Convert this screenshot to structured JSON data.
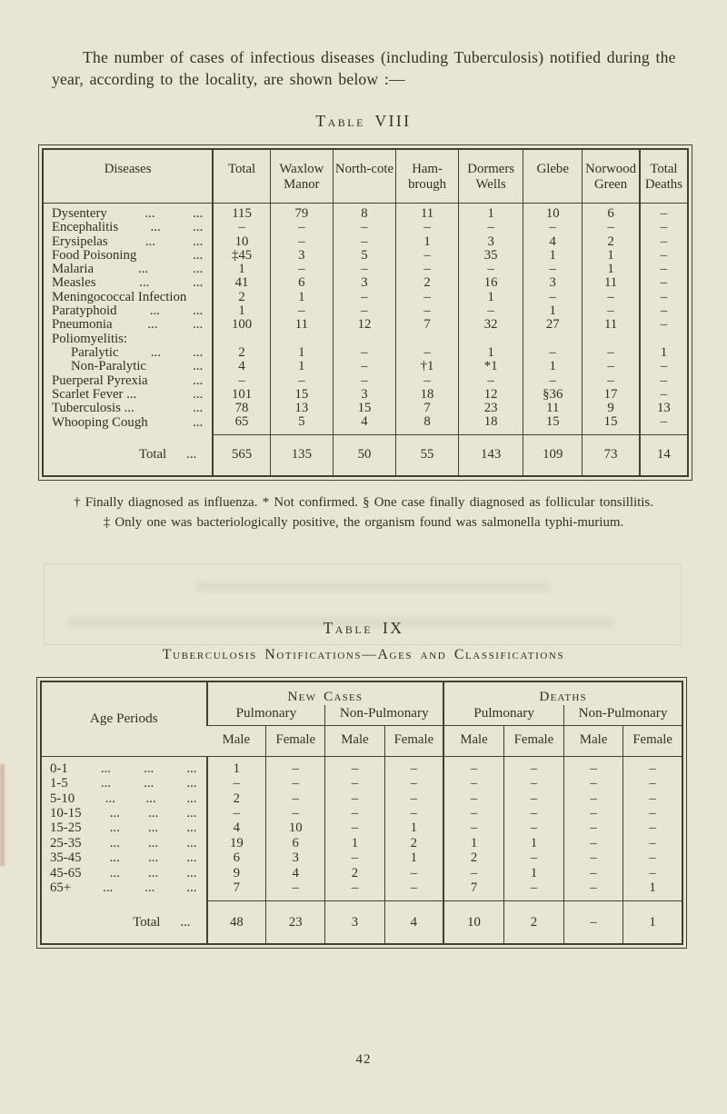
{
  "theme": {
    "paper": "#e9e5d5",
    "ink": "#322e24"
  },
  "page": {
    "intro": "The number of cases of infectious diseases (including Tuberculosis) notified during the year, according to the locality, are shown below :—",
    "page_number": "42"
  },
  "table8": {
    "title": "Table VIII",
    "columns": [
      "Diseases",
      "Total",
      "Waxlow Manor",
      "North-cote",
      "Ham-brough",
      "Dormers Wells",
      "Glebe",
      "Norwood Green",
      "Total Deaths"
    ],
    "rows": [
      {
        "label": "Dysentery",
        "leader": "... ...",
        "values": [
          "115",
          "79",
          "8",
          "11",
          "1",
          "10",
          "6",
          "–"
        ]
      },
      {
        "label": "Encephalitis",
        "leader": "... ...",
        "values": [
          "–",
          "–",
          "–",
          "–",
          "–",
          "–",
          "–",
          "–"
        ]
      },
      {
        "label": "Erysipelas",
        "leader": "... ...",
        "values": [
          "10",
          "–",
          "–",
          "1",
          "3",
          "4",
          "2",
          "–"
        ]
      },
      {
        "label": "Food Poisoning",
        "leader": "...",
        "values": [
          "‡45",
          "3",
          "5",
          "–",
          "35",
          "1",
          "1",
          "–"
        ]
      },
      {
        "label": "Malaria",
        "leader": "... ...",
        "values": [
          "1",
          "–",
          "–",
          "–",
          "–",
          "–",
          "1",
          "–"
        ]
      },
      {
        "label": "Measles",
        "leader": "... ...",
        "values": [
          "41",
          "6",
          "3",
          "2",
          "16",
          "3",
          "11",
          "–"
        ]
      },
      {
        "label": "Meningococcal Infection",
        "leader": "",
        "values": [
          "2",
          "1",
          "–",
          "–",
          "1",
          "–",
          "–",
          "–"
        ]
      },
      {
        "label": "Paratyphoid",
        "leader": "... ...",
        "values": [
          "1",
          "–",
          "–",
          "–",
          "–",
          "1",
          "–",
          "–"
        ]
      },
      {
        "label": "Pneumonia",
        "leader": "... ...",
        "values": [
          "100",
          "11",
          "12",
          "7",
          "32",
          "27",
          "11",
          "–"
        ]
      },
      {
        "label": "Poliomyelitis:",
        "leader": "",
        "values": [
          "",
          "",
          "",
          "",
          "",
          "",
          "",
          ""
        ]
      },
      {
        "label": "Paralytic",
        "leader": "... ...",
        "indent": true,
        "values": [
          "2",
          "1",
          "–",
          "–",
          "1",
          "–",
          "–",
          "1"
        ]
      },
      {
        "label": "Non-Paralytic",
        "leader": "...",
        "indent": true,
        "values": [
          "4",
          "1",
          "–",
          "†1",
          "*1",
          "1",
          "–",
          "–"
        ]
      },
      {
        "label": "Puerperal Pyrexia",
        "leader": "...",
        "values": [
          "–",
          "–",
          "–",
          "–",
          "–",
          "–",
          "–",
          "–"
        ]
      },
      {
        "label": "Scarlet Fever ...",
        "leader": "...",
        "values": [
          "101",
          "15",
          "3",
          "18",
          "12",
          "§36",
          "17",
          "–"
        ]
      },
      {
        "label": "Tuberculosis ...",
        "leader": "...",
        "values": [
          "78",
          "13",
          "15",
          "7",
          "23",
          "11",
          "9",
          "13"
        ]
      },
      {
        "label": "Whooping Cough",
        "leader": "...",
        "values": [
          "65",
          "5",
          "4",
          "8",
          "18",
          "15",
          "15",
          "–"
        ]
      }
    ],
    "total_row": {
      "label": "Total",
      "leader": "...",
      "values": [
        "565",
        "135",
        "50",
        "55",
        "143",
        "109",
        "73",
        "14"
      ]
    },
    "footnotes": [
      "† Finally diagnosed as influenza.  * Not confirmed.  § One case finally diagnosed as follicular tonsillitis.",
      "‡ Only one was bacteriologically positive, the organism found was salmonella typhi-murium."
    ]
  },
  "table9": {
    "title": "Table IX",
    "subtitle": "Tuberculosis Notifications—Ages and Classifications",
    "col_age": "Age Periods",
    "group_new_cases": "New Cases",
    "group_deaths": "Deaths",
    "sub_pulmonary": "Pulmonary",
    "sub_non_pulmonary": "Non-Pulmonary",
    "col_male": "Male",
    "col_female": "Female",
    "rows": [
      {
        "label": "0-1",
        "leader": "... ... ...",
        "values": [
          "1",
          "–",
          "–",
          "–",
          "–",
          "–",
          "–",
          "–"
        ]
      },
      {
        "label": "1-5",
        "leader": "... ... ...",
        "values": [
          "–",
          "–",
          "–",
          "–",
          "–",
          "–",
          "–",
          "–"
        ]
      },
      {
        "label": "5-10",
        "leader": "... ... ...",
        "values": [
          "2",
          "–",
          "–",
          "–",
          "–",
          "–",
          "–",
          "–"
        ]
      },
      {
        "label": "10-15",
        "leader": "... ... ...",
        "values": [
          "–",
          "–",
          "–",
          "–",
          "–",
          "–",
          "–",
          "–"
        ]
      },
      {
        "label": "15-25",
        "leader": "... ... ...",
        "values": [
          "4",
          "10",
          "–",
          "1",
          "–",
          "–",
          "–",
          "–"
        ]
      },
      {
        "label": "25-35",
        "leader": "... ... ...",
        "values": [
          "19",
          "6",
          "1",
          "2",
          "1",
          "1",
          "–",
          "–"
        ]
      },
      {
        "label": "35-45",
        "leader": "... ... ...",
        "values": [
          "6",
          "3",
          "–",
          "1",
          "2",
          "–",
          "–",
          "–"
        ]
      },
      {
        "label": "45-65",
        "leader": "... ... ...",
        "values": [
          "9",
          "4",
          "2",
          "–",
          "–",
          "1",
          "–",
          "–"
        ]
      },
      {
        "label": "65+",
        "leader": "... ... ...",
        "values": [
          "7",
          "–",
          "–",
          "–",
          "7",
          "–",
          "–",
          "1"
        ]
      }
    ],
    "total_row": {
      "label": "Total",
      "leader": "...",
      "values": [
        "48",
        "23",
        "3",
        "4",
        "10",
        "2",
        "–",
        "1"
      ]
    }
  }
}
